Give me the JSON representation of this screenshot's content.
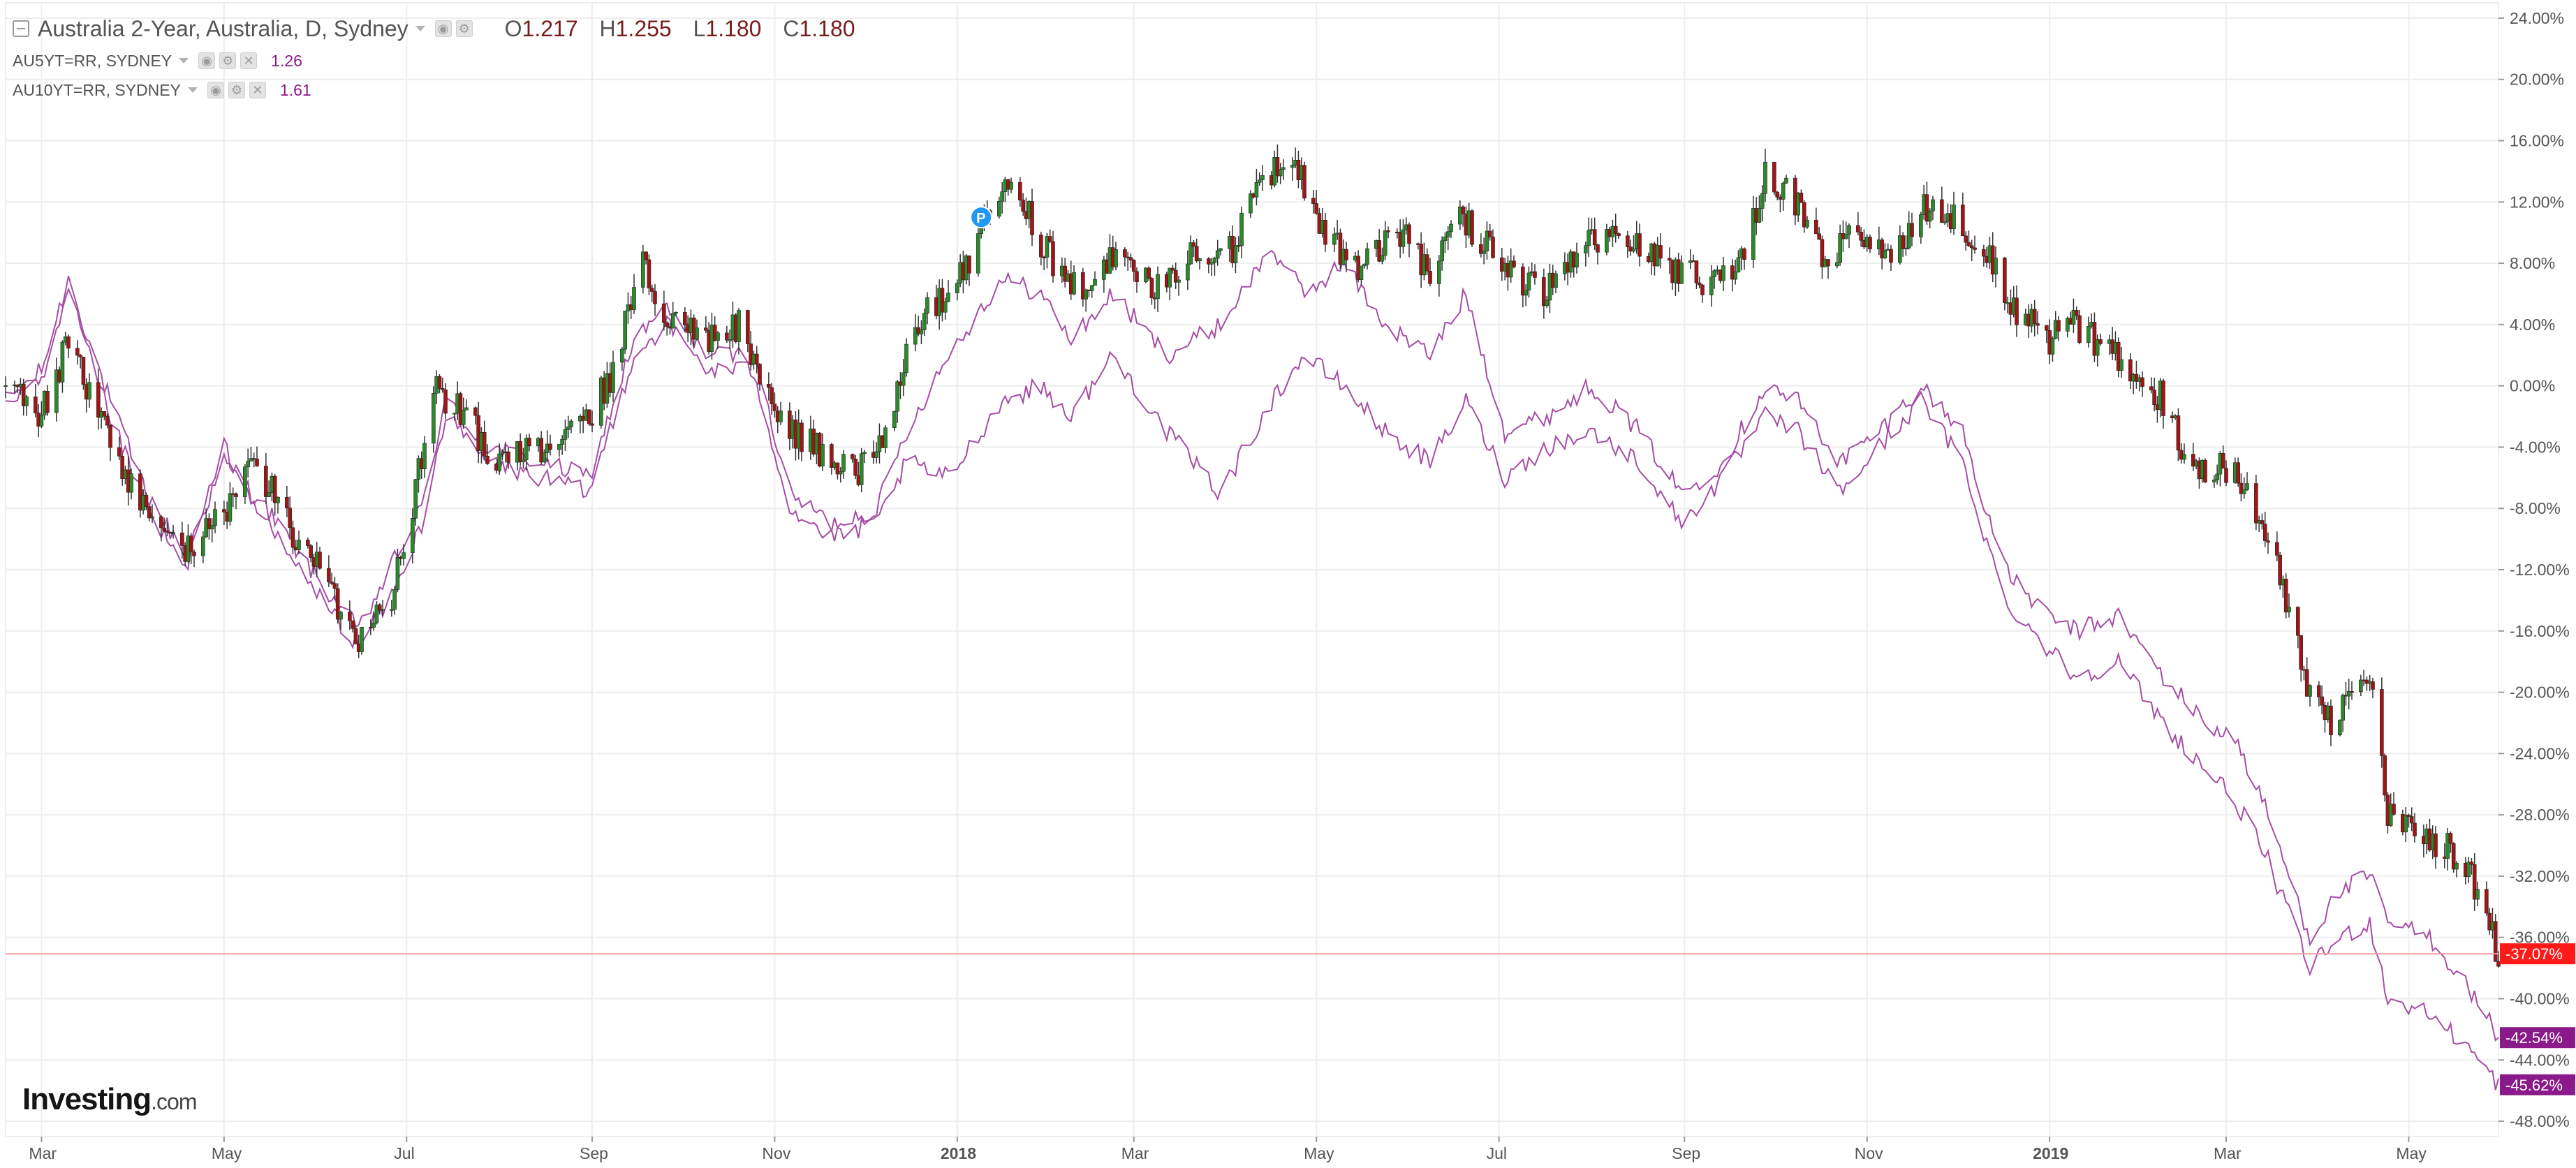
{
  "legend": {
    "main_title": "Australia 2-Year, Australia, D, Sydney",
    "ohlc": {
      "o_label": "O",
      "o": "1.217",
      "h_label": "H",
      "h": "1.255",
      "l_label": "L",
      "l": "1.180",
      "c_label": "C",
      "c": "1.180"
    },
    "series2_title": "AU5YT=RR, SYDNEY",
    "series2_value": "1.26",
    "series3_title": "AU10YT=RR, SYDNEY",
    "series3_value": "1.61"
  },
  "logo": {
    "brand": "Investing",
    "domain": ".com"
  },
  "colors": {
    "up": "#2a8a2a",
    "down": "#a01515",
    "compare_line": "#a64da6",
    "last_price": "#ff1a1a",
    "compare_label": "#8a1a8a",
    "grid": "#eeeeee"
  },
  "chart_data": {
    "type": "candlestick",
    "y_unit": "percent change",
    "ylim": [
      -49,
      25
    ],
    "y_ticks": [
      "24.00%",
      "20.00%",
      "16.00%",
      "12.00%",
      "8.00%",
      "4.00%",
      "0.00%",
      "-4.00%",
      "-8.00%",
      "-12.00%",
      "-16.00%",
      "-20.00%",
      "-24.00%",
      "-28.00%",
      "-32.00%",
      "-36.00%",
      "-40.00%",
      "-44.00%",
      "-48.00%"
    ],
    "x_ticks": [
      {
        "label": "Mar",
        "date": "2017-03-01",
        "bold": false
      },
      {
        "label": "May",
        "date": "2017-05-01",
        "bold": false
      },
      {
        "label": "Jul",
        "date": "2017-07-01",
        "bold": false
      },
      {
        "label": "Sep",
        "date": "2017-09-01",
        "bold": false
      },
      {
        "label": "Nov",
        "date": "2017-11-01",
        "bold": false
      },
      {
        "label": "2018",
        "date": "2018-01-01",
        "bold": true
      },
      {
        "label": "Mar",
        "date": "2018-03-01",
        "bold": false
      },
      {
        "label": "May",
        "date": "2018-05-01",
        "bold": false
      },
      {
        "label": "Jul",
        "date": "2018-07-01",
        "bold": false
      },
      {
        "label": "Sep",
        "date": "2018-09-01",
        "bold": false
      },
      {
        "label": "Nov",
        "date": "2018-11-01",
        "bold": false
      },
      {
        "label": "2019",
        "date": "2019-01-01",
        "bold": true
      },
      {
        "label": "Mar",
        "date": "2019-03-01",
        "bold": false
      },
      {
        "label": "May",
        "date": "2019-05-01",
        "bold": false
      }
    ],
    "x_range": [
      "2017-02-17",
      "2019-05-31"
    ],
    "main_series": {
      "name": "Australia 2-Year",
      "anchor_points": [
        [
          "2017-02-17",
          0
        ],
        [
          "2017-03-01",
          -2
        ],
        [
          "2017-03-10",
          3
        ],
        [
          "2017-03-22",
          -3
        ],
        [
          "2017-04-05",
          -8
        ],
        [
          "2017-04-18",
          -11
        ],
        [
          "2017-04-28",
          -9
        ],
        [
          "2017-05-12",
          -5
        ],
        [
          "2017-05-22",
          -9
        ],
        [
          "2017-06-05",
          -13
        ],
        [
          "2017-06-15",
          -17
        ],
        [
          "2017-06-26",
          -14
        ],
        [
          "2017-07-03",
          -8
        ],
        [
          "2017-07-10",
          0
        ],
        [
          "2017-07-20",
          -2
        ],
        [
          "2017-08-01",
          -5
        ],
        [
          "2017-08-15",
          -4
        ],
        [
          "2017-08-31",
          -2
        ],
        [
          "2017-09-08",
          1
        ],
        [
          "2017-09-18",
          8
        ],
        [
          "2017-09-28",
          4
        ],
        [
          "2017-10-10",
          3
        ],
        [
          "2017-10-20",
          4
        ],
        [
          "2017-11-01",
          -2
        ],
        [
          "2017-11-15",
          -4
        ],
        [
          "2017-11-28",
          -6
        ],
        [
          "2017-12-08",
          -3
        ],
        [
          "2017-12-18",
          4
        ],
        [
          "2018-01-02",
          7
        ],
        [
          "2018-01-09",
          10
        ],
        [
          "2018-01-16",
          13
        ],
        [
          "2018-01-25",
          11
        ],
        [
          "2018-02-02",
          8
        ],
        [
          "2018-02-12",
          6
        ],
        [
          "2018-02-26",
          9
        ],
        [
          "2018-03-08",
          6
        ],
        [
          "2018-03-20",
          9
        ],
        [
          "2018-04-03",
          9
        ],
        [
          "2018-04-12",
          13
        ],
        [
          "2018-04-24",
          15
        ],
        [
          "2018-05-03",
          10
        ],
        [
          "2018-05-15",
          8
        ],
        [
          "2018-05-30",
          10
        ],
        [
          "2018-06-08",
          7
        ],
        [
          "2018-06-18",
          11
        ],
        [
          "2018-07-02",
          8
        ],
        [
          "2018-07-16",
          6
        ],
        [
          "2018-07-30",
          9
        ],
        [
          "2018-08-10",
          10
        ],
        [
          "2018-08-24",
          8
        ],
        [
          "2018-09-07",
          7
        ],
        [
          "2018-09-20",
          8
        ],
        [
          "2018-09-28",
          14
        ],
        [
          "2018-10-08",
          12
        ],
        [
          "2018-10-18",
          8
        ],
        [
          "2018-10-29",
          10
        ],
        [
          "2018-11-09",
          8
        ],
        [
          "2018-11-19",
          12
        ],
        [
          "2018-11-30",
          11
        ],
        [
          "2018-12-10",
          9
        ],
        [
          "2018-12-20",
          5
        ],
        [
          "2018-12-31",
          3
        ],
        [
          "2019-01-10",
          4
        ],
        [
          "2019-01-21",
          2
        ],
        [
          "2019-01-31",
          1
        ],
        [
          "2019-02-08",
          -1
        ],
        [
          "2019-02-18",
          -6
        ],
        [
          "2019-02-28",
          -5
        ],
        [
          "2019-03-08",
          -7
        ],
        [
          "2019-03-15",
          -10
        ],
        [
          "2019-03-22",
          -15
        ],
        [
          "2019-03-29",
          -20
        ],
        [
          "2019-04-05",
          -22
        ],
        [
          "2019-04-12",
          -20
        ],
        [
          "2019-04-18",
          -19
        ],
        [
          "2019-04-24",
          -28
        ],
        [
          "2019-05-03",
          -29
        ],
        [
          "2019-05-12",
          -30
        ],
        [
          "2019-05-20",
          -31
        ],
        [
          "2019-05-27",
          -35
        ],
        [
          "2019-05-31",
          -37.07
        ]
      ],
      "last_value_label": "-37.07%"
    },
    "compare_series": [
      {
        "name": "AU5YT=RR, SYDNEY",
        "last_value_label": "-42.54%",
        "anchor_points": [
          [
            "2017-02-17",
            -1
          ],
          [
            "2017-03-01",
            1
          ],
          [
            "2017-03-10",
            7
          ],
          [
            "2017-03-22",
            0
          ],
          [
            "2017-04-05",
            -7
          ],
          [
            "2017-04-18",
            -11
          ],
          [
            "2017-05-01",
            -5
          ],
          [
            "2017-05-15",
            -8
          ],
          [
            "2017-05-30",
            -12
          ],
          [
            "2017-06-15",
            -16
          ],
          [
            "2017-06-28",
            -11
          ],
          [
            "2017-07-06",
            -8
          ],
          [
            "2017-07-14",
            -1
          ],
          [
            "2017-07-28",
            -4
          ],
          [
            "2017-08-15",
            -5
          ],
          [
            "2017-08-31",
            -6
          ],
          [
            "2017-09-15",
            3
          ],
          [
            "2017-09-26",
            5
          ],
          [
            "2017-10-10",
            2
          ],
          [
            "2017-10-25",
            2
          ],
          [
            "2017-11-06",
            -7
          ],
          [
            "2017-11-20",
            -9
          ],
          [
            "2017-12-05",
            -8
          ],
          [
            "2017-12-15",
            -3
          ],
          [
            "2017-12-29",
            2
          ],
          [
            "2018-01-16",
            7
          ],
          [
            "2018-01-29",
            6
          ],
          [
            "2018-02-08",
            3
          ],
          [
            "2018-02-22",
            6
          ],
          [
            "2018-03-12",
            2
          ],
          [
            "2018-03-30",
            4
          ],
          [
            "2018-04-16",
            9
          ],
          [
            "2018-04-27",
            6
          ],
          [
            "2018-05-10",
            8
          ],
          [
            "2018-05-24",
            4
          ],
          [
            "2018-06-08",
            2
          ],
          [
            "2018-06-20",
            6
          ],
          [
            "2018-07-03",
            -3
          ],
          [
            "2018-07-17",
            -2
          ],
          [
            "2018-08-01",
            0
          ],
          [
            "2018-08-17",
            -3
          ],
          [
            "2018-08-31",
            -7
          ],
          [
            "2018-09-14",
            -5
          ],
          [
            "2018-09-28",
            0
          ],
          [
            "2018-10-09",
            -1
          ],
          [
            "2018-10-23",
            -5
          ],
          [
            "2018-11-05",
            -3
          ],
          [
            "2018-11-19",
            0
          ],
          [
            "2018-12-03",
            -3
          ],
          [
            "2018-12-17",
            -12
          ],
          [
            "2018-12-31",
            -15
          ],
          [
            "2019-01-10",
            -16
          ],
          [
            "2019-01-24",
            -15
          ],
          [
            "2019-02-08",
            -19
          ],
          [
            "2019-02-22",
            -22
          ],
          [
            "2019-03-04",
            -23
          ],
          [
            "2019-03-15",
            -28
          ],
          [
            "2019-03-29",
            -36
          ],
          [
            "2019-04-08",
            -33
          ],
          [
            "2019-04-18",
            -32
          ],
          [
            "2019-04-24",
            -35
          ],
          [
            "2019-05-08",
            -36
          ],
          [
            "2019-05-20",
            -39
          ],
          [
            "2019-05-31",
            -42.54
          ]
        ]
      },
      {
        "name": "AU10YT=RR, SYDNEY",
        "last_value_label": "-45.62%",
        "anchor_points": [
          [
            "2017-02-17",
            -1
          ],
          [
            "2017-03-01",
            0
          ],
          [
            "2017-03-10",
            6
          ],
          [
            "2017-03-22",
            -1
          ],
          [
            "2017-04-05",
            -8
          ],
          [
            "2017-04-18",
            -12
          ],
          [
            "2017-05-01",
            -4
          ],
          [
            "2017-05-15",
            -9
          ],
          [
            "2017-05-30",
            -13
          ],
          [
            "2017-06-15",
            -17
          ],
          [
            "2017-06-28",
            -13
          ],
          [
            "2017-07-06",
            -9
          ],
          [
            "2017-07-14",
            -2
          ],
          [
            "2017-07-28",
            -5
          ],
          [
            "2017-08-15",
            -6
          ],
          [
            "2017-08-31",
            -7
          ],
          [
            "2017-09-15",
            2
          ],
          [
            "2017-09-26",
            4
          ],
          [
            "2017-10-10",
            1
          ],
          [
            "2017-10-25",
            1
          ],
          [
            "2017-11-06",
            -8
          ],
          [
            "2017-11-20",
            -10
          ],
          [
            "2017-12-05",
            -9
          ],
          [
            "2017-12-15",
            -5
          ],
          [
            "2017-12-29",
            -6
          ],
          [
            "2018-01-16",
            -1
          ],
          [
            "2018-01-29",
            0
          ],
          [
            "2018-02-08",
            -2
          ],
          [
            "2018-02-22",
            2
          ],
          [
            "2018-03-12",
            -3
          ],
          [
            "2018-03-30",
            -7
          ],
          [
            "2018-04-16",
            -1
          ],
          [
            "2018-04-27",
            2
          ],
          [
            "2018-05-10",
            0
          ],
          [
            "2018-05-24",
            -3
          ],
          [
            "2018-06-08",
            -5
          ],
          [
            "2018-06-20",
            -1
          ],
          [
            "2018-07-03",
            -6
          ],
          [
            "2018-07-17",
            -4
          ],
          [
            "2018-08-01",
            -3
          ],
          [
            "2018-08-17",
            -5
          ],
          [
            "2018-08-31",
            -9
          ],
          [
            "2018-09-14",
            -6
          ],
          [
            "2018-09-28",
            -2
          ],
          [
            "2018-10-09",
            -3
          ],
          [
            "2018-10-23",
            -7
          ],
          [
            "2018-11-05",
            -4
          ],
          [
            "2018-11-19",
            -1
          ],
          [
            "2018-12-03",
            -5
          ],
          [
            "2018-12-17",
            -14
          ],
          [
            "2018-12-31",
            -17
          ],
          [
            "2019-01-10",
            -19
          ],
          [
            "2019-01-24",
            -18
          ],
          [
            "2019-02-08",
            -22
          ],
          [
            "2019-02-22",
            -25
          ],
          [
            "2019-03-04",
            -27
          ],
          [
            "2019-03-15",
            -31
          ],
          [
            "2019-03-29",
            -38
          ],
          [
            "2019-04-08",
            -36
          ],
          [
            "2019-04-18",
            -35
          ],
          [
            "2019-04-24",
            -40
          ],
          [
            "2019-05-08",
            -41
          ],
          [
            "2019-05-20",
            -43
          ],
          [
            "2019-05-31",
            -45.62
          ]
        ]
      }
    ],
    "horizontal_line_value": -37.07,
    "marker": {
      "date": "2018-01-09",
      "value": 11,
      "label": "P"
    },
    "grid": true
  }
}
